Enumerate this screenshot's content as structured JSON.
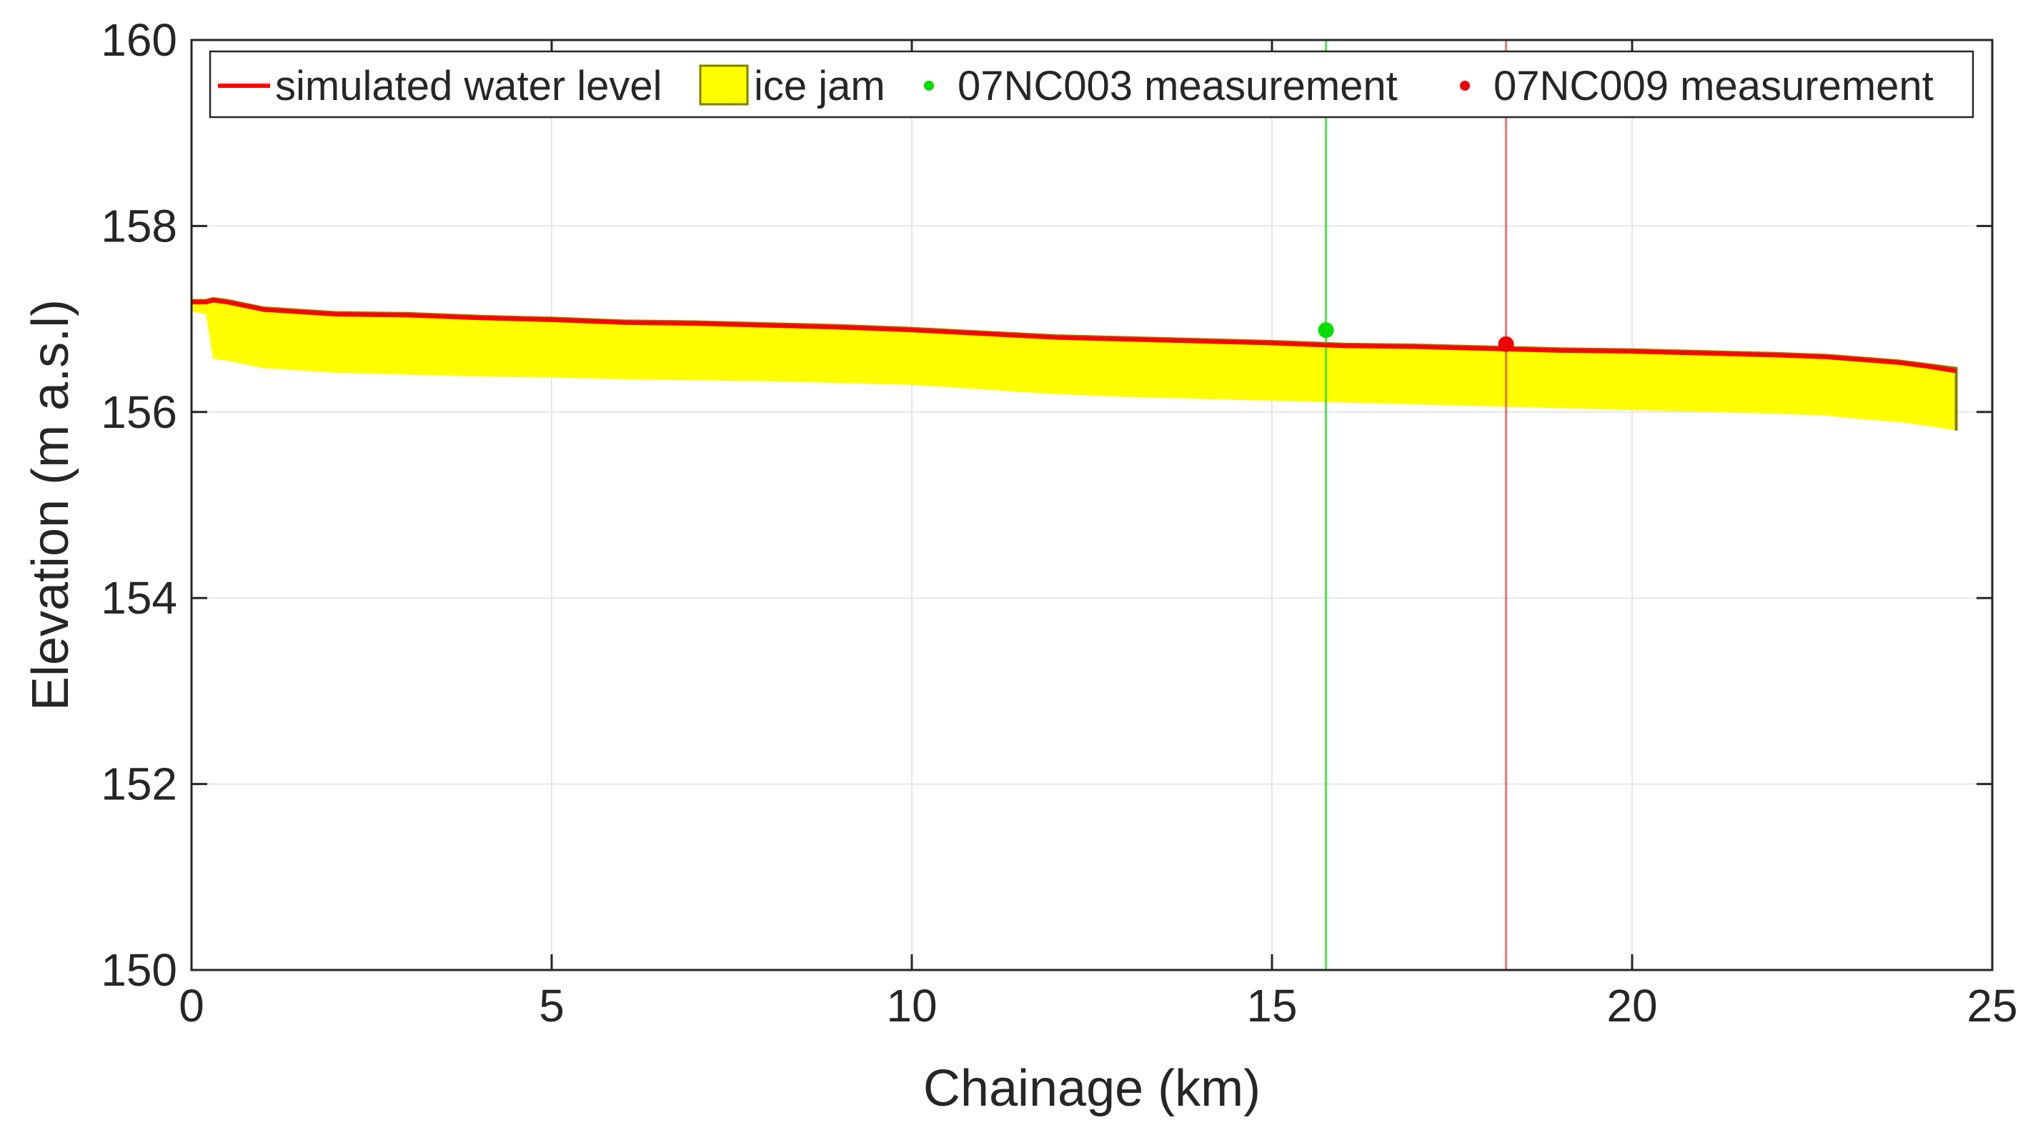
{
  "chart_data": {
    "type": "line",
    "title": "",
    "xlabel": "Chainage (km)",
    "ylabel": "Elevation (m a.s.l)",
    "xlim": [
      0,
      25
    ],
    "ylim": [
      150,
      160
    ],
    "xticks": [
      0,
      5,
      10,
      15,
      20,
      25
    ],
    "yticks": [
      150,
      152,
      154,
      156,
      158,
      160
    ],
    "grid": true,
    "legend_position": "top",
    "series": [
      {
        "name": "simulated water level",
        "kind": "line",
        "color": "#ff0000",
        "x": [
          0,
          0.2,
          0.3,
          0.5,
          1,
          2,
          3,
          4,
          5,
          6,
          7,
          8,
          9,
          10,
          11,
          12,
          13,
          14,
          15,
          16,
          17,
          18,
          19,
          20,
          21,
          22,
          22.7,
          23.2,
          23.7,
          24.1,
          24.5
        ],
        "y": [
          157.18,
          157.18,
          157.2,
          157.18,
          157.1,
          157.05,
          157.04,
          157.01,
          156.99,
          156.96,
          156.95,
          156.93,
          156.91,
          156.88,
          156.84,
          156.8,
          156.78,
          156.76,
          156.74,
          156.71,
          156.7,
          156.68,
          156.66,
          156.65,
          156.63,
          156.61,
          156.59,
          156.56,
          156.53,
          156.49,
          156.44
        ]
      },
      {
        "name": "ice jam",
        "kind": "area",
        "color": "#ffff00",
        "edge_color": "#808000",
        "x": [
          0,
          0.2,
          0.3,
          0.5,
          1,
          2,
          3,
          4,
          5,
          6,
          7,
          8,
          9,
          10,
          11,
          12,
          13,
          14,
          15,
          16,
          17,
          18,
          19,
          20,
          21,
          22,
          22.7,
          23.2,
          23.7,
          24.1,
          24.5
        ],
        "top": [
          157.2,
          157.2,
          157.22,
          157.2,
          157.12,
          157.07,
          157.06,
          157.03,
          157.01,
          156.98,
          156.97,
          156.95,
          156.93,
          156.9,
          156.86,
          156.82,
          156.8,
          156.78,
          156.76,
          156.73,
          156.72,
          156.7,
          156.68,
          156.67,
          156.65,
          156.63,
          156.61,
          156.58,
          156.55,
          156.51,
          156.47
        ],
        "bottom": [
          157.08,
          157.05,
          156.57,
          156.55,
          156.47,
          156.42,
          156.4,
          156.38,
          156.37,
          156.35,
          156.34,
          156.33,
          156.31,
          156.29,
          156.24,
          156.19,
          156.16,
          156.14,
          156.12,
          156.1,
          156.08,
          156.06,
          156.04,
          156.02,
          156.0,
          155.98,
          155.96,
          155.92,
          155.89,
          155.85,
          155.8
        ]
      },
      {
        "name": "07NC003 measurement",
        "kind": "point",
        "color": "#00dd00",
        "x": [
          15.75
        ],
        "y": [
          156.88
        ],
        "vline_x": 15.75
      },
      {
        "name": "07NC009 measurement",
        "kind": "point",
        "color": "#ee0000",
        "x": [
          18.25
        ],
        "y": [
          156.73
        ],
        "vline_x": 18.25
      }
    ]
  }
}
